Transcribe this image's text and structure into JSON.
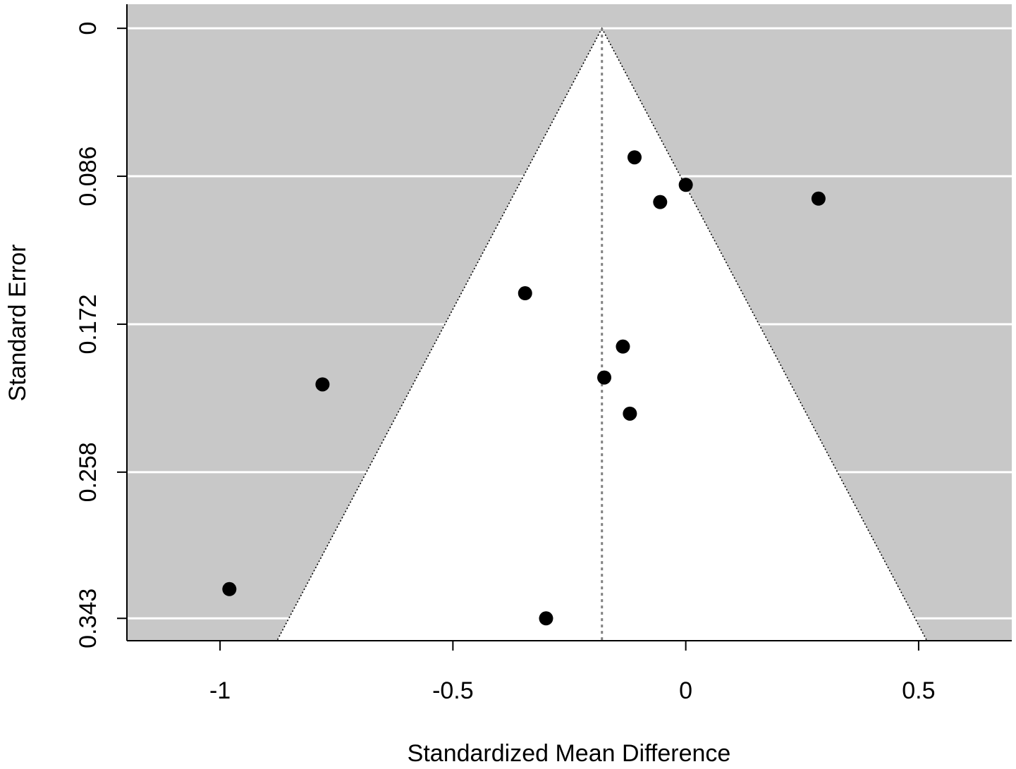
{
  "chart_data": {
    "type": "scatter",
    "subtype": "funnel-plot",
    "title": "",
    "xlabel": "Standardized Mean Difference",
    "ylabel": "Standard Error",
    "xlim": [
      -1.2,
      0.7
    ],
    "ylim": [
      0.356,
      -0.014
    ],
    "y_reversed": true,
    "x_ticks": [
      -1,
      -0.5,
      0,
      0.5
    ],
    "x_tick_labels": [
      "-1",
      "-0.5",
      "0",
      "0.5"
    ],
    "y_ticks": [
      0,
      0.086,
      0.172,
      0.258,
      0.343
    ],
    "y_tick_labels": [
      "0",
      "0.086",
      "0.172",
      "0.258",
      "0.343"
    ],
    "summary_estimate": -0.18,
    "funnel_z": 1.96,
    "funnel_max_se": 0.357,
    "grid": true,
    "colors": {
      "panel": "#c8c8c8",
      "funnel": "#ffffff",
      "gridline": "#ffffff",
      "points": "#000000",
      "reference_line": "#808080"
    },
    "points": [
      {
        "x": -0.11,
        "y": 0.075
      },
      {
        "x": 0.0,
        "y": 0.091
      },
      {
        "x": -0.055,
        "y": 0.101
      },
      {
        "x": 0.285,
        "y": 0.099
      },
      {
        "x": -0.345,
        "y": 0.154
      },
      {
        "x": -0.135,
        "y": 0.185
      },
      {
        "x": -0.175,
        "y": 0.203
      },
      {
        "x": -0.12,
        "y": 0.224
      },
      {
        "x": -0.78,
        "y": 0.207
      },
      {
        "x": -0.98,
        "y": 0.326
      },
      {
        "x": -0.3,
        "y": 0.343
      }
    ]
  }
}
